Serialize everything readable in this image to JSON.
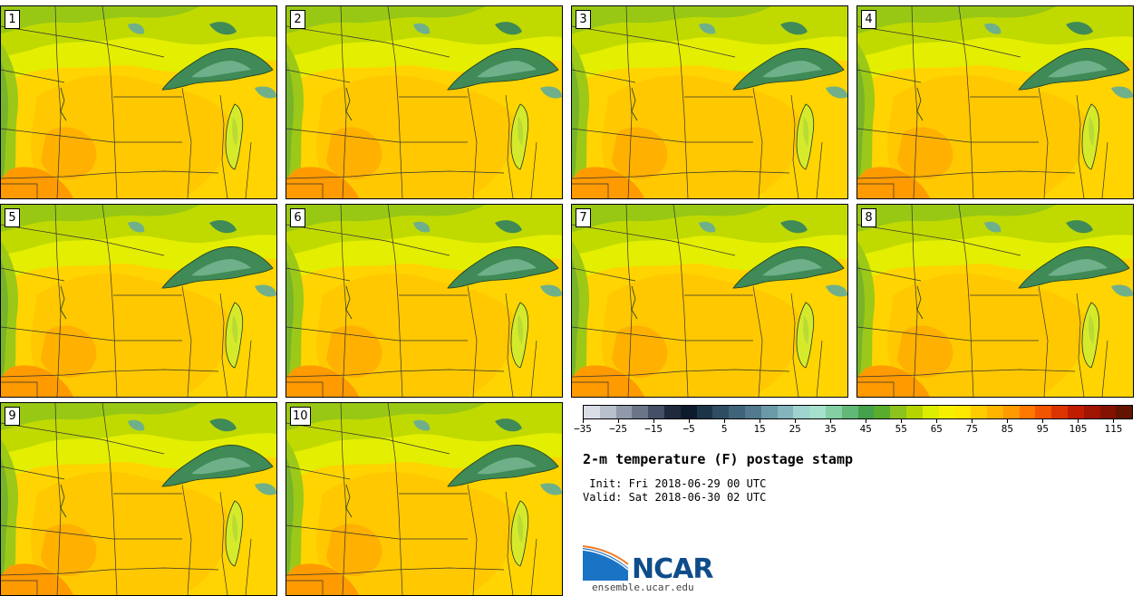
{
  "product": {
    "title": "2-m temperature (F) postage stamp",
    "init": " Init: Fri 2018-06-29 00 UTC",
    "valid": "Valid: Sat 2018-06-30 02 UTC"
  },
  "members": [
    "1",
    "2",
    "3",
    "4",
    "5",
    "6",
    "7",
    "8",
    "9",
    "10"
  ],
  "colorbar": {
    "colors": [
      "#d8dde6",
      "#b8c0cc",
      "#909aab",
      "#6a7588",
      "#434f64",
      "#1f2a3d",
      "#0c1a2e",
      "#1c3448",
      "#2e4d62",
      "#3f6479",
      "#52798e",
      "#6a9aa8",
      "#84b5bd",
      "#9ed3cf",
      "#a4e0cc",
      "#84cfa4",
      "#62b878",
      "#44a04a",
      "#5aac2e",
      "#8cc21c",
      "#b4d400",
      "#dcec00",
      "#f6f000",
      "#ffe800",
      "#ffcc00",
      "#ffb400",
      "#ff9a00",
      "#ff7800",
      "#f25400",
      "#dc3400",
      "#c01c00",
      "#a01400",
      "#841200",
      "#621400"
    ],
    "min": -35,
    "max": 120,
    "tick_labels": [
      "-35",
      "-25",
      "-15",
      "-5",
      "5",
      "15",
      "25",
      "35",
      "45",
      "55",
      "65",
      "75",
      "85",
      "95",
      "105",
      "115"
    ],
    "tick_values": [
      -35,
      -25,
      -15,
      -5,
      5,
      15,
      25,
      35,
      45,
      55,
      65,
      75,
      85,
      95,
      105,
      115
    ]
  },
  "logo": {
    "text": "NCAR",
    "website": "ensemble.ucar.edu"
  }
}
